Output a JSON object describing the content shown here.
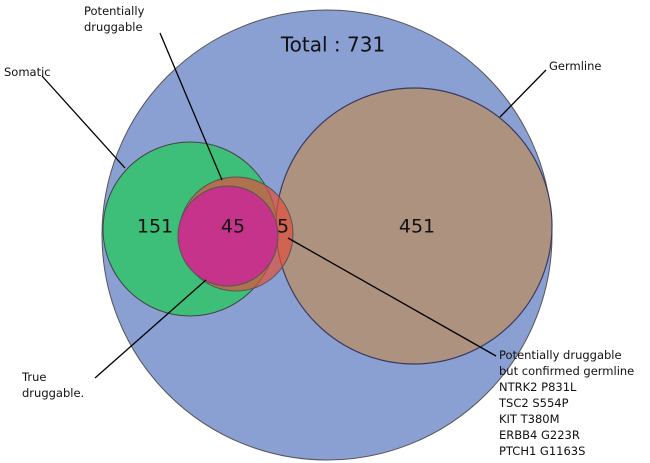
{
  "title": "Total : 731",
  "regions": {
    "somatic_only": 151,
    "true_druggable": 45,
    "druggable_germline": 5,
    "germline_only": 451
  },
  "callouts": {
    "potentially_druggable": [
      "Potentially",
      "druggable"
    ],
    "somatic": [
      "Somatic"
    ],
    "germline": [
      "Germline"
    ],
    "true_druggable": [
      "True",
      "druggable."
    ],
    "confirmed_germline": [
      "Potentially druggable",
      "but confirmed germline",
      "NTRK2 P831L",
      "TSC2 S554P",
      "KIT T380M",
      "ERBB4 G223R",
      "PTCH1 G1163S"
    ]
  }
}
